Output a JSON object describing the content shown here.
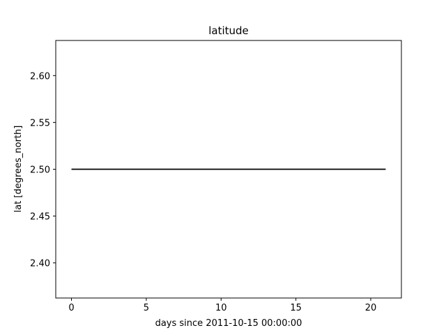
{
  "chart_data": {
    "type": "line",
    "title": "latitude",
    "xlabel": "days since 2011-10-15 00:00:00",
    "ylabel": "lat [degrees_north]",
    "xlim": [
      -1.05,
      22.05
    ],
    "ylim": [
      2.3625,
      2.6375
    ],
    "xticks": [
      0,
      5,
      10,
      15,
      20
    ],
    "xtick_labels": [
      "0",
      "5",
      "10",
      "15",
      "20"
    ],
    "yticks": [
      2.4,
      2.45,
      2.5,
      2.55,
      2.6
    ],
    "ytick_labels": [
      "2.40",
      "2.45",
      "2.50",
      "2.55",
      "2.60"
    ],
    "grid": false,
    "series": [
      {
        "color": "#000000",
        "x": [
          0,
          21
        ],
        "y": [
          2.5,
          2.5
        ]
      }
    ]
  }
}
